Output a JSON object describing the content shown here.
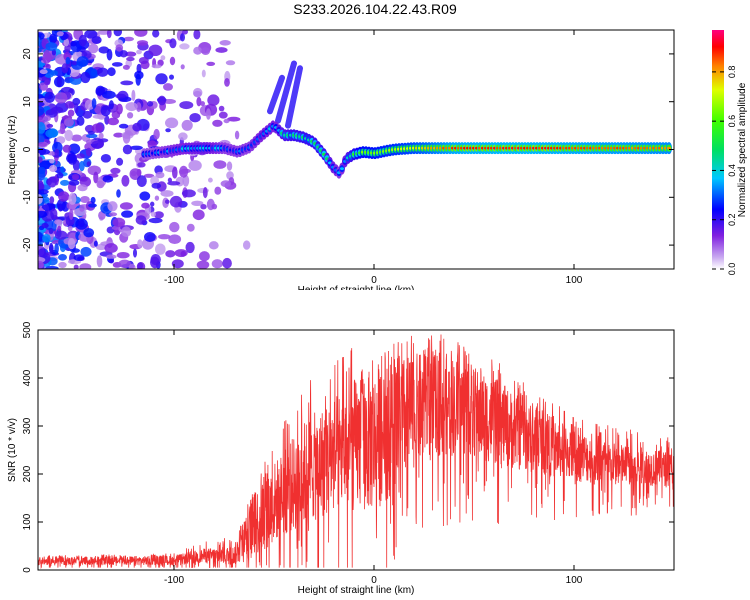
{
  "title": "S233.2026.104.22.43.R09",
  "chart_data": [
    {
      "type": "heatmap",
      "name": "spectrogram",
      "xlabel": "Height of straight line (km)",
      "ylabel": "Frequency (Hz)",
      "xlim": [
        -168,
        150
      ],
      "ylim": [
        -25,
        25
      ],
      "xticks": [
        -100,
        0,
        100
      ],
      "yticks": [
        -20,
        -10,
        0,
        10,
        20
      ],
      "xtick_labels": [
        "-100",
        "0",
        "100"
      ],
      "ytick_labels": [
        "-20",
        "-10",
        "0",
        "10",
        "20"
      ],
      "colorbar": {
        "label": "Normalized spectral amplitude",
        "range": [
          0,
          0.97
        ],
        "ticks": [
          0.0,
          0.2,
          0.4,
          0.6,
          0.8
        ],
        "tick_labels": [
          "0.0",
          "0.2",
          "0.4",
          "0.6",
          "0.8"
        ]
      },
      "ridge": {
        "x": [
          -115,
          -105,
          -95,
          -85,
          -75,
          -68,
          -62,
          -56,
          -50,
          -45,
          -40,
          -35,
          -30,
          -25,
          -20,
          -17,
          -14,
          -10,
          -5,
          0,
          10,
          20,
          40,
          60,
          80,
          100,
          120,
          148
        ],
        "freq": [
          -1,
          -0.5,
          0.2,
          0.3,
          0.3,
          -0.5,
          0.5,
          3,
          5,
          3,
          3,
          2.5,
          1.5,
          -1,
          -4,
          -5,
          -2,
          -1,
          -0.5,
          -0.8,
          0,
          0.3,
          0.3,
          0.3,
          0.3,
          0.3,
          0.3,
          0.3
        ],
        "amp": [
          0.25,
          0.3,
          0.35,
          0.4,
          0.3,
          0.3,
          0.3,
          0.35,
          0.35,
          0.45,
          0.5,
          0.5,
          0.5,
          0.5,
          0.35,
          0.3,
          0.4,
          0.55,
          0.65,
          0.65,
          0.7,
          0.75,
          0.9,
          0.92,
          0.92,
          0.9,
          0.88,
          0.85
        ]
      }
    },
    {
      "type": "line",
      "name": "snr",
      "xlabel": "Height of straight line (km)",
      "ylabel": "SNR (10 * v/v)",
      "xlim": [
        -168,
        150
      ],
      "ylim": [
        0,
        500
      ],
      "xticks": [
        -100,
        0,
        100
      ],
      "yticks": [
        0,
        100,
        200,
        300,
        400,
        500
      ],
      "xtick_labels": [
        "-100",
        "0",
        "100"
      ],
      "ytick_labels": [
        "0",
        "100",
        "200",
        "300",
        "400",
        "500"
      ],
      "color": "#f03030",
      "envelope": {
        "x": [
          -168,
          -100,
          -85,
          -70,
          -62,
          -55,
          -45,
          -35,
          -20,
          -10,
          0,
          10,
          20,
          30,
          45,
          60,
          80,
          100,
          120,
          150
        ],
        "mean": [
          18,
          20,
          30,
          30,
          80,
          120,
          160,
          200,
          240,
          260,
          270,
          300,
          330,
          350,
          340,
          310,
          270,
          240,
          220,
          210
        ],
        "spread": [
          8,
          10,
          15,
          20,
          60,
          80,
          90,
          110,
          120,
          140,
          150,
          140,
          120,
          110,
          100,
          90,
          70,
          55,
          45,
          35
        ],
        "peak": [
          30,
          35,
          60,
          70,
          150,
          230,
          320,
          400,
          430,
          480,
          460,
          480,
          490,
          500,
          470,
          440,
          380,
          320,
          300,
          280
        ]
      }
    }
  ]
}
